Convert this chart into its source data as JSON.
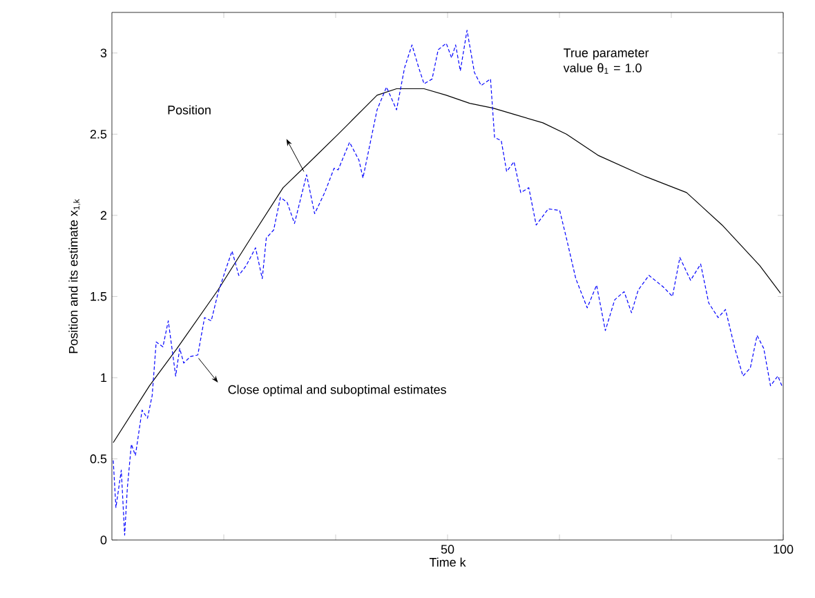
{
  "chart_data": {
    "type": "line",
    "xlabel": "Time k",
    "ylabel": "Position and its estimate  x$_{1,k}$",
    "annotations": [
      "Position",
      "Close optimal and suboptimal estimates",
      "True parameter value θ$_{1}$ = 1.0"
    ],
    "xlim": [
      0,
      100
    ],
    "ylim": [
      0,
      3.25
    ],
    "xticks": [
      {
        "value": 16.67,
        "label": null
      },
      {
        "value": 33.33,
        "label": null
      },
      50,
      {
        "value": 66.67,
        "label": null
      },
      {
        "value": 83.33,
        "label": null
      },
      100
    ],
    "yticks": [
      0,
      0.5,
      1,
      1.5,
      2,
      2.5,
      3
    ],
    "grid": false,
    "marker": "none",
    "series": [
      {
        "color": "#000000",
        "line_style": "solid",
        "x": [
          0.2,
          5.6,
          9.7,
          15.8,
          21,
          25.5,
          29,
          33.7,
          35.4,
          39.5,
          42.4,
          46.5,
          49.8,
          53.3,
          56.8,
          60.1,
          64.2,
          67.7,
          72.4,
          79.4,
          85.6,
          90.9,
          96.5,
          99.6
        ],
        "values": [
          0.6,
          0.95,
          1.18,
          1.54,
          1.88,
          2.17,
          2.31,
          2.5,
          2.57,
          2.74,
          2.78,
          2.78,
          2.74,
          2.69,
          2.66,
          2.62,
          2.57,
          2.5,
          2.37,
          2.24,
          2.14,
          1.94,
          1.69,
          1.52
        ]
      },
      {
        "color": "#0000ff",
        "line_style": "dashed",
        "x": [
          0.2,
          0.6,
          1.4,
          1.9,
          2.3,
          2.9,
          3.5,
          4.5,
          5.3,
          6,
          6.6,
          7.6,
          8.4,
          9.5,
          10.1,
          10.7,
          11.7,
          12.8,
          13.8,
          14.8,
          15.8,
          16.9,
          17.9,
          18.9,
          20,
          21.4,
          22.4,
          23,
          24.1,
          25.1,
          26.1,
          27.2,
          29,
          30.2,
          31.7,
          33.1,
          33.7,
          35.4,
          36.8,
          37.4,
          39.5,
          40.9,
          42.4,
          43.6,
          44.7,
          45.7,
          46.5,
          47.7,
          48.6,
          49.8,
          50.6,
          51.2,
          51.9,
          52.9,
          54,
          55,
          56.4,
          57,
          58,
          58.8,
          59.9,
          60.9,
          62.1,
          63.2,
          65,
          66.7,
          67.7,
          69.1,
          70.8,
          72.2,
          73.5,
          74.9,
          76.3,
          77.4,
          78.4,
          80,
          82.1,
          83.5,
          84.6,
          86.2,
          87.7,
          88.9,
          90.3,
          91.4,
          92.8,
          94,
          95.1,
          96.1,
          97.1,
          98.1,
          99.2,
          99.8
        ],
        "values": [
          0.49,
          0.2,
          0.43,
          0.03,
          0.32,
          0.59,
          0.52,
          0.8,
          0.75,
          0.89,
          1.22,
          1.19,
          1.35,
          1.01,
          1.18,
          1.09,
          1.13,
          1.14,
          1.37,
          1.35,
          1.52,
          1.66,
          1.78,
          1.63,
          1.69,
          1.8,
          1.61,
          1.86,
          1.91,
          2.11,
          2.08,
          1.95,
          2.25,
          2.01,
          2.14,
          2.29,
          2.28,
          2.45,
          2.34,
          2.23,
          2.65,
          2.79,
          2.65,
          2.91,
          3.05,
          2.91,
          2.81,
          2.84,
          3.02,
          3.06,
          2.97,
          3.05,
          2.89,
          3.14,
          2.88,
          2.8,
          2.84,
          2.48,
          2.46,
          2.27,
          2.33,
          2.14,
          2.17,
          1.94,
          2.04,
          2.03,
          1.86,
          1.61,
          1.43,
          1.57,
          1.29,
          1.48,
          1.53,
          1.4,
          1.54,
          1.63,
          1.56,
          1.5,
          1.74,
          1.6,
          1.7,
          1.46,
          1.37,
          1.42,
          1.18,
          1.01,
          1.06,
          1.26,
          1.18,
          0.95,
          1.01,
          0.95
        ]
      }
    ]
  }
}
